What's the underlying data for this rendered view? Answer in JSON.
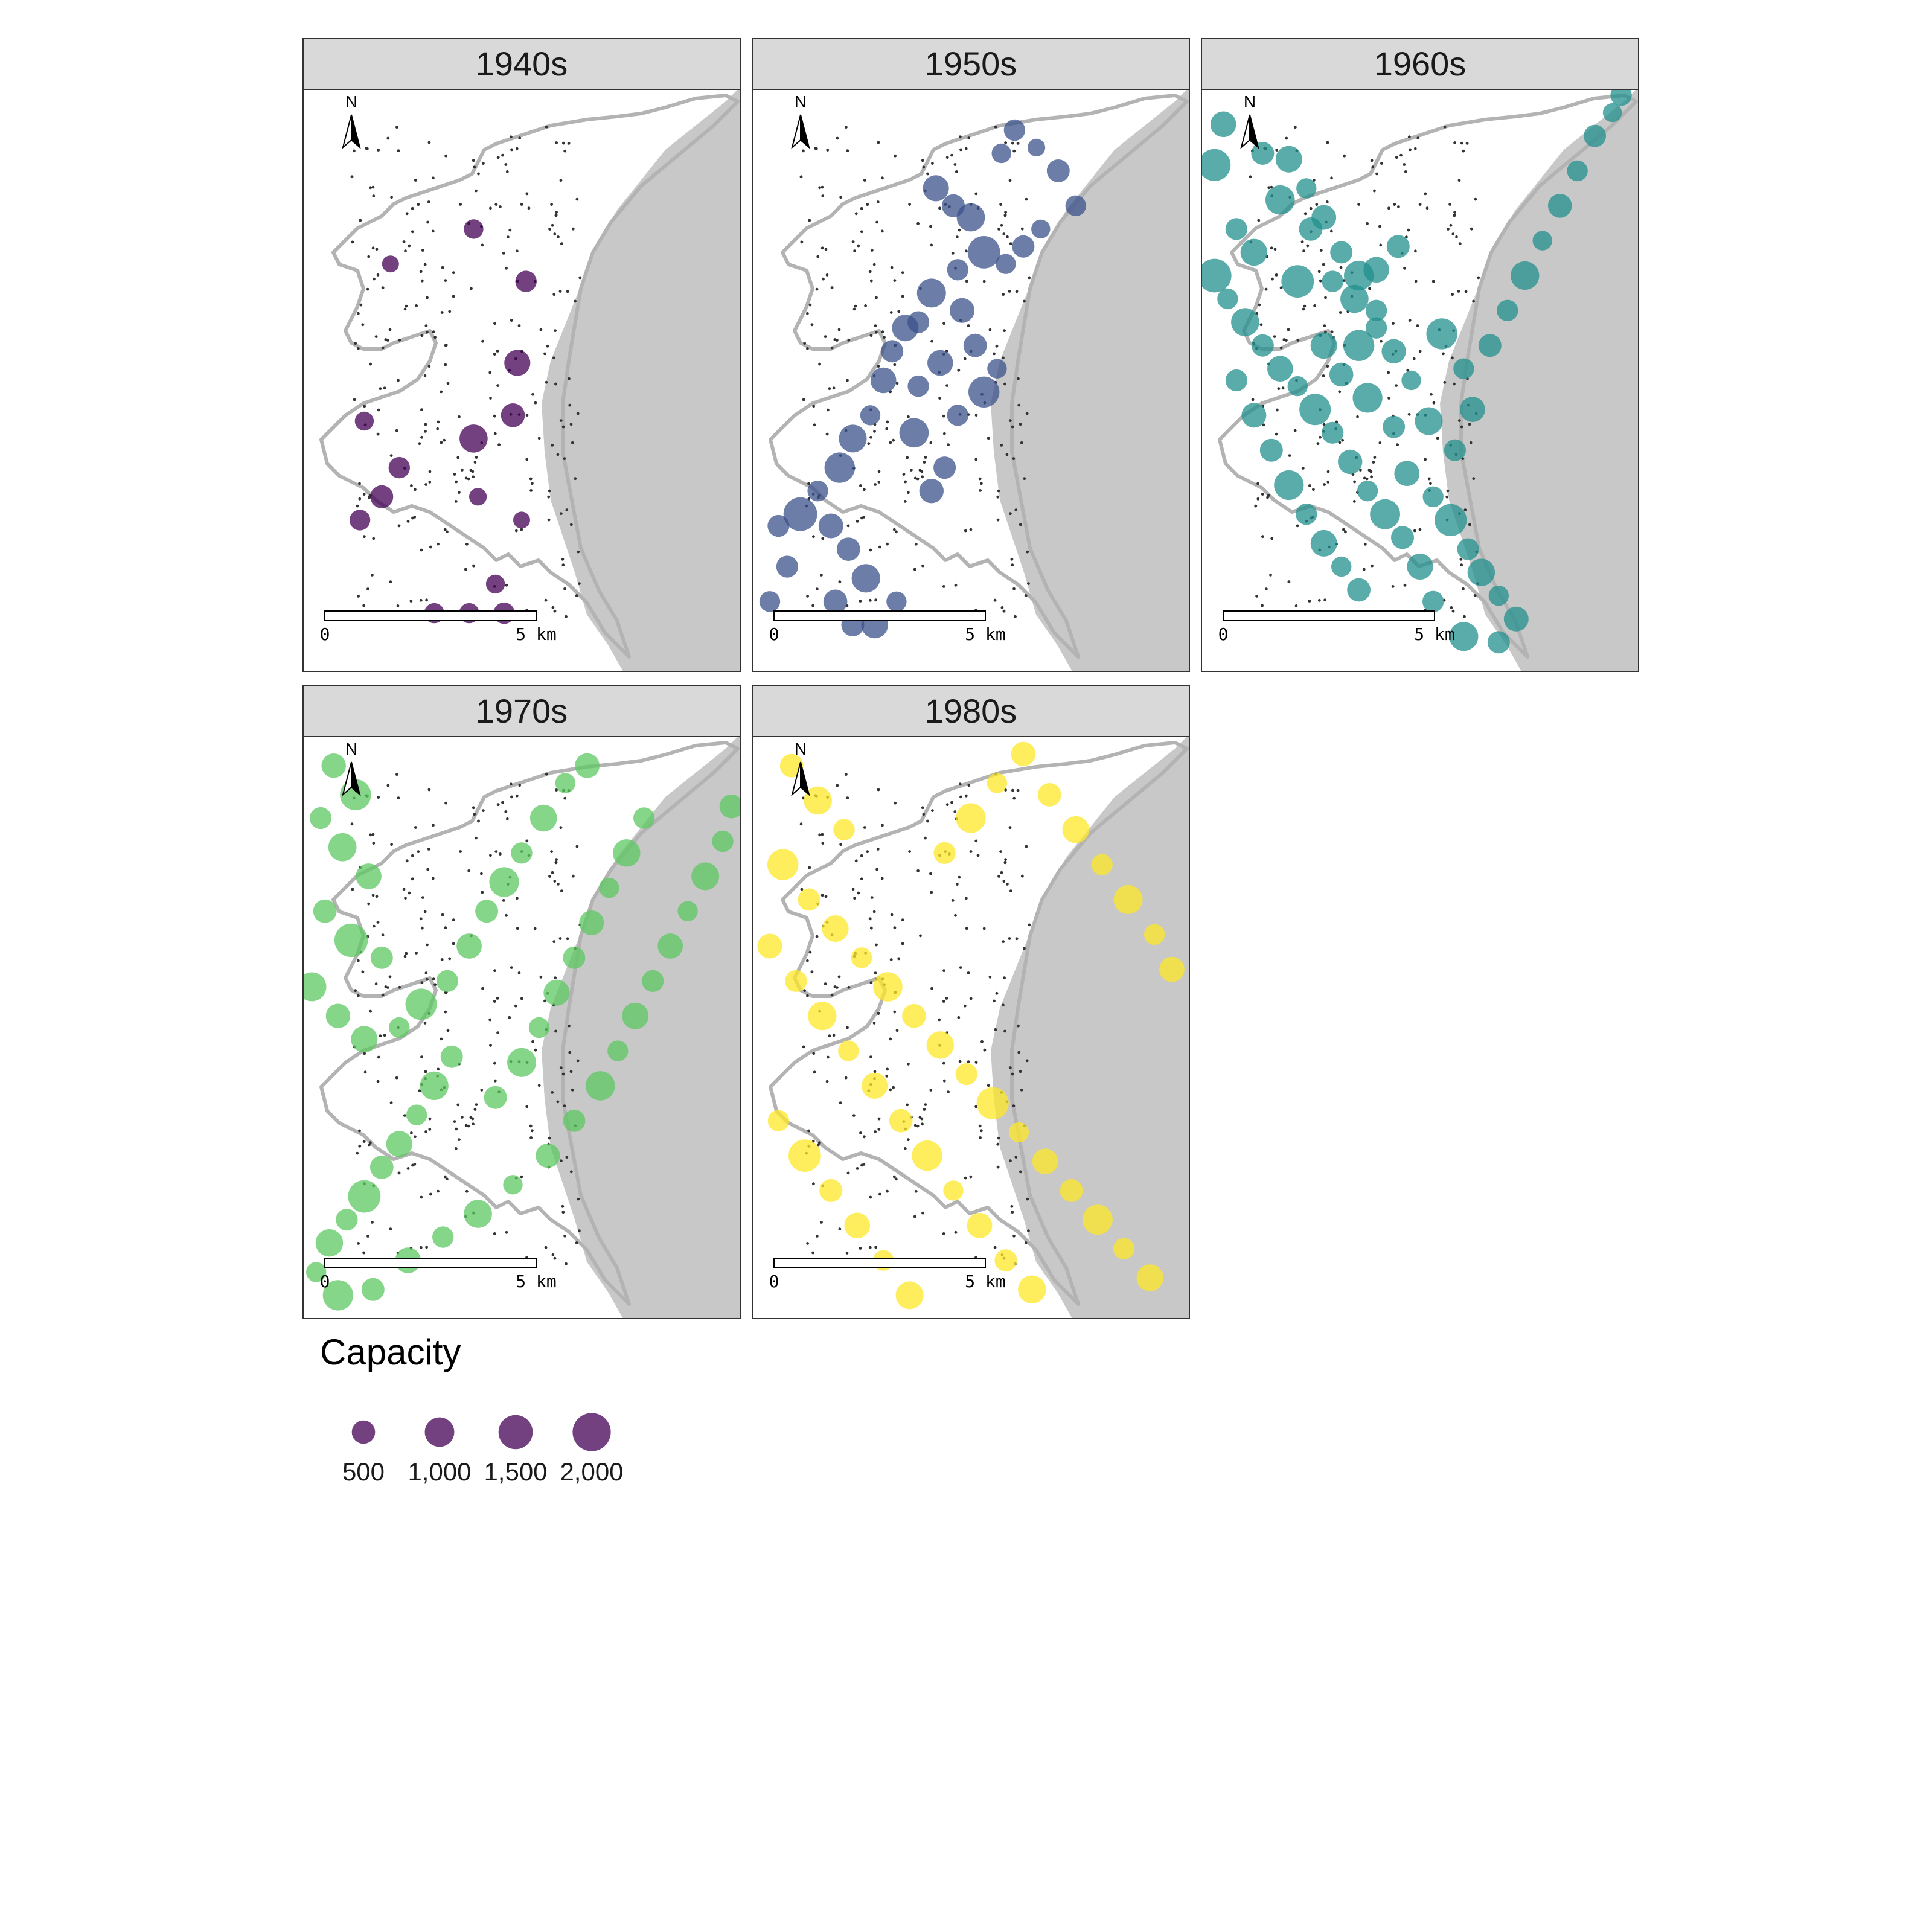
{
  "map": {
    "panels": [
      {
        "label": "1940s",
        "color": "#440154",
        "points": [
          [
            0.39,
            0.24
          ],
          [
            0.51,
            0.33
          ],
          [
            0.49,
            0.47
          ],
          [
            0.48,
            0.56
          ],
          [
            0.39,
            0.6
          ],
          [
            0.22,
            0.65
          ],
          [
            0.18,
            0.7
          ],
          [
            0.5,
            0.74
          ],
          [
            0.3,
            0.9
          ],
          [
            0.38,
            0.9
          ],
          [
            0.44,
            0.85
          ],
          [
            0.46,
            0.9
          ],
          [
            0.2,
            0.3
          ],
          [
            0.14,
            0.57
          ],
          [
            0.13,
            0.74
          ],
          [
            0.4,
            0.7
          ]
        ],
        "sizes": [
          120,
          150,
          250,
          200,
          300,
          150,
          180,
          80,
          130,
          130,
          110,
          150,
          80,
          110,
          140,
          90
        ]
      },
      {
        "label": "1950s",
        "color": "#3b528b",
        "points": [
          [
            0.42,
            0.17
          ],
          [
            0.46,
            0.2
          ],
          [
            0.5,
            0.22
          ],
          [
            0.53,
            0.28
          ],
          [
            0.47,
            0.31
          ],
          [
            0.41,
            0.35
          ],
          [
            0.38,
            0.4
          ],
          [
            0.35,
            0.41
          ],
          [
            0.32,
            0.45
          ],
          [
            0.3,
            0.5
          ],
          [
            0.27,
            0.56
          ],
          [
            0.23,
            0.6
          ],
          [
            0.2,
            0.65
          ],
          [
            0.15,
            0.69
          ],
          [
            0.11,
            0.73
          ],
          [
            0.06,
            0.75
          ],
          [
            0.18,
            0.75
          ],
          [
            0.22,
            0.79
          ],
          [
            0.26,
            0.84
          ],
          [
            0.33,
            0.88
          ],
          [
            0.28,
            0.92
          ],
          [
            0.23,
            0.92
          ],
          [
            0.19,
            0.88
          ],
          [
            0.08,
            0.82
          ],
          [
            0.04,
            0.88
          ],
          [
            0.41,
            0.69
          ],
          [
            0.44,
            0.65
          ],
          [
            0.37,
            0.59
          ],
          [
            0.47,
            0.56
          ],
          [
            0.53,
            0.52
          ],
          [
            0.56,
            0.48
          ],
          [
            0.51,
            0.44
          ],
          [
            0.43,
            0.47
          ],
          [
            0.38,
            0.51
          ],
          [
            0.48,
            0.38
          ],
          [
            0.58,
            0.3
          ],
          [
            0.62,
            0.27
          ],
          [
            0.66,
            0.24
          ],
          [
            0.74,
            0.2
          ],
          [
            0.7,
            0.14
          ],
          [
            0.57,
            0.11
          ],
          [
            0.6,
            0.07
          ],
          [
            0.65,
            0.1
          ]
        ],
        "sizes": [
          250,
          180,
          300,
          420,
          150,
          320,
          160,
          260,
          170,
          240,
          130,
          290,
          360,
          140,
          460,
          160,
          220,
          190,
          310,
          130,
          270,
          180,
          200,
          160,
          140,
          210,
          170,
          330,
          150,
          380,
          120,
          190,
          240,
          150,
          220,
          130,
          170,
          110,
          140,
          180,
          120,
          150,
          90
        ]
      },
      {
        "label": "1960s",
        "color": "#21908c",
        "points": [
          [
            0.05,
            0.06
          ],
          [
            0.03,
            0.13
          ],
          [
            0.14,
            0.11
          ],
          [
            0.18,
            0.19
          ],
          [
            0.08,
            0.24
          ],
          [
            0.12,
            0.28
          ],
          [
            0.25,
            0.24
          ],
          [
            0.22,
            0.33
          ],
          [
            0.3,
            0.33
          ],
          [
            0.35,
            0.36
          ],
          [
            0.4,
            0.31
          ],
          [
            0.45,
            0.27
          ],
          [
            0.36,
            0.44
          ],
          [
            0.4,
            0.41
          ],
          [
            0.28,
            0.44
          ],
          [
            0.32,
            0.49
          ],
          [
            0.38,
            0.53
          ],
          [
            0.44,
            0.58
          ],
          [
            0.47,
            0.66
          ],
          [
            0.53,
            0.7
          ],
          [
            0.57,
            0.74
          ],
          [
            0.61,
            0.79
          ],
          [
            0.64,
            0.83
          ],
          [
            0.68,
            0.87
          ],
          [
            0.72,
            0.91
          ],
          [
            0.68,
            0.95
          ],
          [
            0.6,
            0.94
          ],
          [
            0.53,
            0.88
          ],
          [
            0.5,
            0.82
          ],
          [
            0.46,
            0.77
          ],
          [
            0.42,
            0.73
          ],
          [
            0.38,
            0.69
          ],
          [
            0.34,
            0.64
          ],
          [
            0.3,
            0.59
          ],
          [
            0.26,
            0.55
          ],
          [
            0.22,
            0.51
          ],
          [
            0.18,
            0.48
          ],
          [
            0.14,
            0.44
          ],
          [
            0.1,
            0.4
          ],
          [
            0.06,
            0.36
          ],
          [
            0.03,
            0.32
          ],
          [
            0.08,
            0.5
          ],
          [
            0.12,
            0.56
          ],
          [
            0.16,
            0.62
          ],
          [
            0.2,
            0.68
          ],
          [
            0.24,
            0.73
          ],
          [
            0.28,
            0.78
          ],
          [
            0.32,
            0.82
          ],
          [
            0.36,
            0.86
          ],
          [
            0.55,
            0.42
          ],
          [
            0.6,
            0.48
          ],
          [
            0.62,
            0.55
          ],
          [
            0.58,
            0.62
          ],
          [
            0.52,
            0.57
          ],
          [
            0.48,
            0.5
          ],
          [
            0.44,
            0.45
          ],
          [
            0.4,
            0.38
          ],
          [
            0.36,
            0.32
          ],
          [
            0.32,
            0.28
          ],
          [
            0.28,
            0.22
          ],
          [
            0.24,
            0.17
          ],
          [
            0.2,
            0.12
          ],
          [
            0.66,
            0.44
          ],
          [
            0.7,
            0.38
          ],
          [
            0.74,
            0.32
          ],
          [
            0.78,
            0.26
          ],
          [
            0.82,
            0.2
          ],
          [
            0.86,
            0.14
          ],
          [
            0.9,
            0.08
          ],
          [
            0.94,
            0.04
          ],
          [
            0.96,
            0.01
          ]
        ],
        "sizes": [
          240,
          410,
          180,
          330,
          160,
          270,
          190,
          420,
          150,
          300,
          240,
          180,
          380,
          150,
          260,
          200,
          340,
          170,
          230,
          140,
          410,
          160,
          280,
          130,
          220,
          170,
          320,
          150,
          250,
          180,
          350,
          140,
          210,
          160,
          390,
          130,
          240,
          170,
          300,
          140,
          460,
          160,
          220,
          180,
          340,
          150,
          260,
          130,
          190,
          380,
          140,
          230,
          160,
          290,
          120,
          210,
          150,
          340,
          170,
          220,
          130,
          260,
          180,
          150,
          310,
          120,
          200,
          140,
          170,
          110,
          150
        ]
      },
      {
        "label": "1970s",
        "color": "#5dc863",
        "points": [
          [
            0.07,
            0.05
          ],
          [
            0.12,
            0.1
          ],
          [
            0.04,
            0.14
          ],
          [
            0.09,
            0.19
          ],
          [
            0.15,
            0.24
          ],
          [
            0.05,
            0.3
          ],
          [
            0.11,
            0.35
          ],
          [
            0.18,
            0.38
          ],
          [
            0.02,
            0.43
          ],
          [
            0.08,
            0.48
          ],
          [
            0.14,
            0.52
          ],
          [
            0.22,
            0.5
          ],
          [
            0.27,
            0.46
          ],
          [
            0.33,
            0.42
          ],
          [
            0.38,
            0.36
          ],
          [
            0.42,
            0.3
          ],
          [
            0.46,
            0.25
          ],
          [
            0.5,
            0.2
          ],
          [
            0.55,
            0.14
          ],
          [
            0.6,
            0.08
          ],
          [
            0.65,
            0.05
          ],
          [
            0.34,
            0.55
          ],
          [
            0.3,
            0.6
          ],
          [
            0.26,
            0.65
          ],
          [
            0.22,
            0.7
          ],
          [
            0.18,
            0.74
          ],
          [
            0.14,
            0.79
          ],
          [
            0.1,
            0.83
          ],
          [
            0.06,
            0.87
          ],
          [
            0.03,
            0.92
          ],
          [
            0.08,
            0.96
          ],
          [
            0.16,
            0.95
          ],
          [
            0.24,
            0.9
          ],
          [
            0.32,
            0.86
          ],
          [
            0.4,
            0.82
          ],
          [
            0.48,
            0.77
          ],
          [
            0.56,
            0.72
          ],
          [
            0.62,
            0.66
          ],
          [
            0.68,
            0.6
          ],
          [
            0.72,
            0.54
          ],
          [
            0.76,
            0.48
          ],
          [
            0.8,
            0.42
          ],
          [
            0.84,
            0.36
          ],
          [
            0.88,
            0.3
          ],
          [
            0.92,
            0.24
          ],
          [
            0.96,
            0.18
          ],
          [
            0.98,
            0.12
          ],
          [
            0.44,
            0.62
          ],
          [
            0.5,
            0.56
          ],
          [
            0.54,
            0.5
          ],
          [
            0.58,
            0.44
          ],
          [
            0.62,
            0.38
          ],
          [
            0.66,
            0.32
          ],
          [
            0.7,
            0.26
          ],
          [
            0.74,
            0.2
          ],
          [
            0.78,
            0.14
          ]
        ],
        "sizes": [
          210,
          380,
          160,
          300,
          240,
          190,
          450,
          170,
          320,
          210,
          260,
          140,
          390,
          160,
          230,
          180,
          340,
          150,
          270,
          130,
          220,
          170,
          310,
          140,
          250,
          190,
          420,
          160,
          280,
          130,
          360,
          180,
          240,
          150,
          300,
          120,
          210,
          170,
          330,
          140,
          260,
          160,
          230,
          130,
          290,
          150,
          200,
          180,
          320,
          140,
          250,
          170,
          220,
          130,
          280,
          150
        ]
      },
      {
        "label": "1980s",
        "color": "#fde725",
        "points": [
          [
            0.09,
            0.05
          ],
          [
            0.15,
            0.11
          ],
          [
            0.21,
            0.16
          ],
          [
            0.07,
            0.22
          ],
          [
            0.13,
            0.28
          ],
          [
            0.19,
            0.33
          ],
          [
            0.25,
            0.38
          ],
          [
            0.31,
            0.43
          ],
          [
            0.37,
            0.48
          ],
          [
            0.43,
            0.53
          ],
          [
            0.49,
            0.58
          ],
          [
            0.55,
            0.63
          ],
          [
            0.61,
            0.68
          ],
          [
            0.67,
            0.73
          ],
          [
            0.73,
            0.78
          ],
          [
            0.79,
            0.83
          ],
          [
            0.85,
            0.88
          ],
          [
            0.91,
            0.93
          ],
          [
            0.04,
            0.36
          ],
          [
            0.1,
            0.42
          ],
          [
            0.16,
            0.48
          ],
          [
            0.22,
            0.54
          ],
          [
            0.28,
            0.6
          ],
          [
            0.34,
            0.66
          ],
          [
            0.4,
            0.72
          ],
          [
            0.46,
            0.78
          ],
          [
            0.52,
            0.84
          ],
          [
            0.58,
            0.9
          ],
          [
            0.64,
            0.95
          ],
          [
            0.06,
            0.66
          ],
          [
            0.12,
            0.72
          ],
          [
            0.18,
            0.78
          ],
          [
            0.24,
            0.84
          ],
          [
            0.3,
            0.9
          ],
          [
            0.36,
            0.96
          ],
          [
            0.44,
            0.2
          ],
          [
            0.5,
            0.14
          ],
          [
            0.56,
            0.08
          ],
          [
            0.62,
            0.03
          ],
          [
            0.68,
            0.1
          ],
          [
            0.74,
            0.16
          ],
          [
            0.8,
            0.22
          ],
          [
            0.86,
            0.28
          ],
          [
            0.92,
            0.34
          ],
          [
            0.96,
            0.4
          ]
        ],
        "sizes": [
          190,
          300,
          150,
          380,
          170,
          260,
          140,
          330,
          200,
          280,
          160,
          410,
          130,
          240,
          180,
          350,
          150,
          270,
          220,
          160,
          310,
          140,
          250,
          190,
          360,
          130,
          230,
          170,
          300,
          150,
          420,
          180,
          240,
          140,
          290,
          160,
          340,
          130,
          210,
          190,
          270,
          150,
          320,
          140,
          230
        ]
      }
    ],
    "dot_color": "#333333",
    "point_opacity": 0.75,
    "ocean_color": "#c8c8c8",
    "boundary_color": "#b3b3b3",
    "north_label": "N",
    "scale_label_start": "0",
    "scale_label_end": "5 km",
    "legend": {
      "title": "Capacity",
      "items": [
        {
          "label": "500",
          "value": 500
        },
        {
          "label": "1,000",
          "value": 1000
        },
        {
          "label": "1,500",
          "value": 1500
        },
        {
          "label": "2,000",
          "value": 2000
        }
      ],
      "color": "#440154"
    }
  }
}
